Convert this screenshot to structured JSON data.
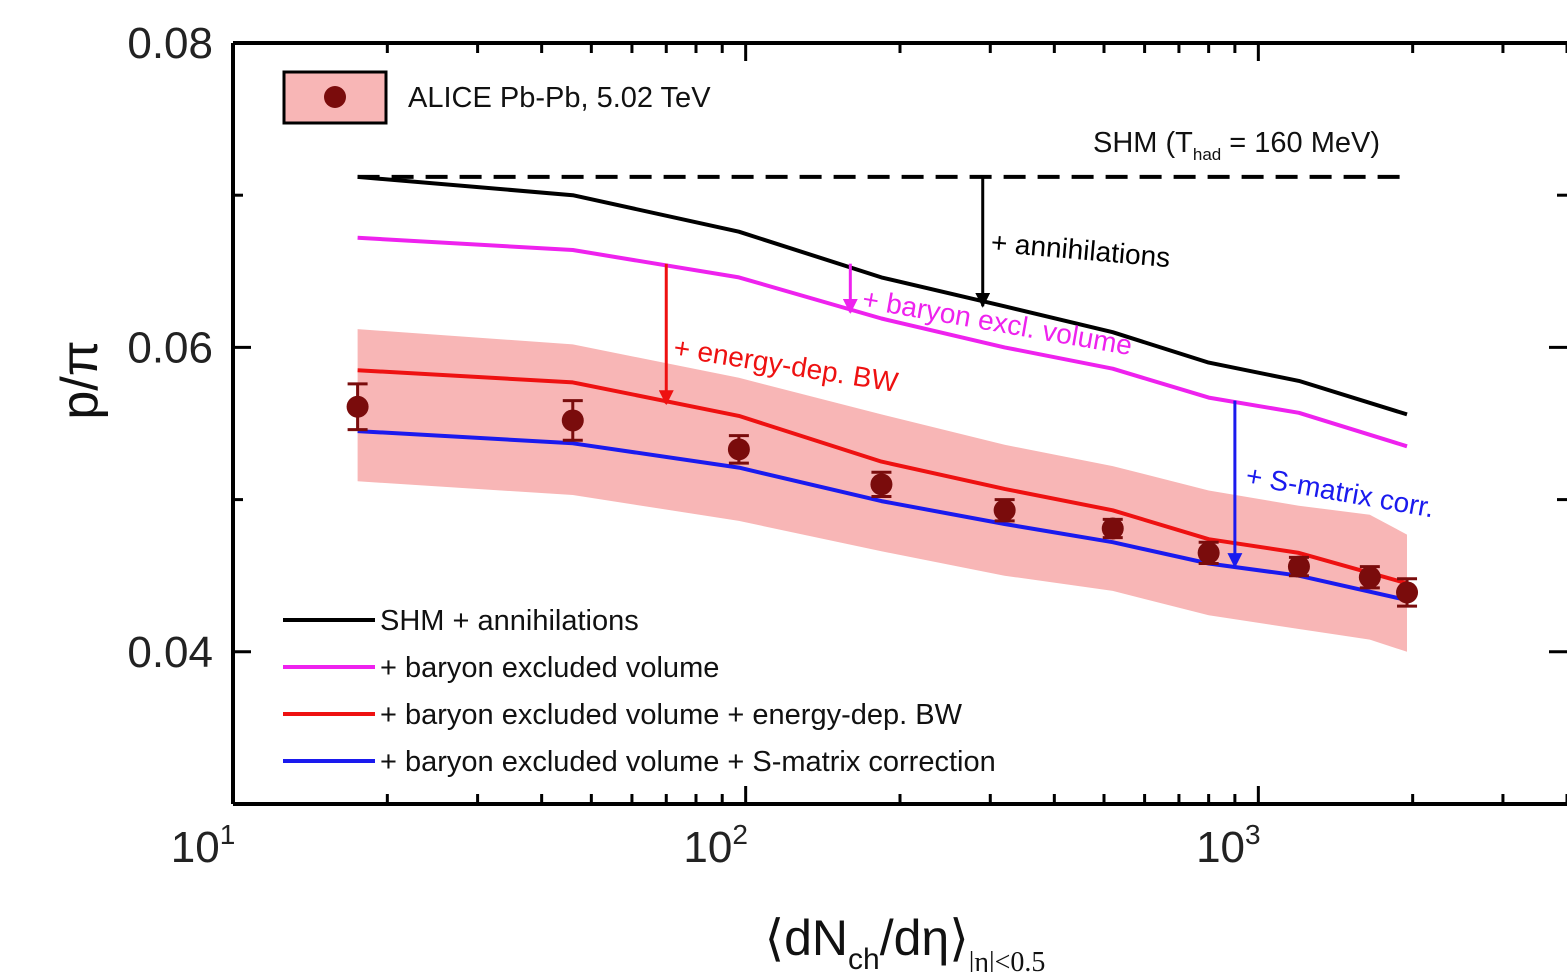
{
  "chart_data": {
    "type": "line",
    "xlabel": {
      "main": "⟨dN",
      "sub1": "ch",
      "mid": "/dη⟩",
      "sub2": "|η|<0.5"
    },
    "ylabel": "p/π",
    "x_scale": "log",
    "xlim": [
      10,
      4000
    ],
    "ylim": [
      0.03,
      0.08
    ],
    "x_tick_labels": [
      {
        "value": 10,
        "base": "10",
        "exp": "1"
      },
      {
        "value": 100,
        "base": "10",
        "exp": "2"
      },
      {
        "value": 1000,
        "base": "10",
        "exp": "3"
      }
    ],
    "y_ticks": [
      {
        "value": 0.04,
        "label": "0.04"
      },
      {
        "value": 0.06,
        "label": "0.06"
      },
      {
        "value": 0.08,
        "label": "0.08"
      }
    ],
    "data_legend": "ALICE Pb-Pb, 5.02 TeV",
    "shm_reference": {
      "label_main": "SHM (T",
      "label_sub": "had",
      "label_rest": " = 160 MeV)",
      "y": 0.0712,
      "x_range": [
        17.5,
        1950
      ],
      "color": "#000000"
    },
    "measurements": {
      "x": [
        17.5,
        46,
        97,
        184,
        320,
        520,
        800,
        1200,
        1650,
        1950
      ],
      "y": [
        0.0561,
        0.0552,
        0.0533,
        0.051,
        0.0493,
        0.0481,
        0.0465,
        0.0456,
        0.0449,
        0.0439
      ],
      "stat_err": [
        0.0015,
        0.0013,
        0.0009,
        0.0008,
        0.0007,
        0.0006,
        0.0007,
        0.0006,
        0.0007,
        0.0009
      ],
      "syst_band": {
        "x": [
          17.5,
          46,
          97,
          184,
          320,
          520,
          800,
          1200,
          1650,
          1950
        ],
        "low": [
          0.0512,
          0.0503,
          0.0486,
          0.0466,
          0.045,
          0.044,
          0.0424,
          0.0415,
          0.0408,
          0.04
        ],
        "high": [
          0.0612,
          0.0602,
          0.058,
          0.0556,
          0.0536,
          0.0522,
          0.0506,
          0.0496,
          0.049,
          0.0477
        ]
      },
      "marker_color": "#7a0c0c",
      "band_color": "#f8b6b6"
    },
    "series": [
      {
        "name": "SHM + annihilations",
        "color": "#000000",
        "x": [
          17.5,
          46,
          97,
          184,
          320,
          520,
          800,
          1200,
          1950
        ],
        "y": [
          0.0712,
          0.07,
          0.0676,
          0.0646,
          0.0627,
          0.061,
          0.059,
          0.0578,
          0.0556
        ]
      },
      {
        "name": "+ baryon excluded volume",
        "color": "#ee22ee",
        "x": [
          17.5,
          46,
          97,
          184,
          320,
          520,
          800,
          1200,
          1950
        ],
        "y": [
          0.0672,
          0.0664,
          0.0646,
          0.0619,
          0.06,
          0.0586,
          0.0567,
          0.0557,
          0.0535
        ]
      },
      {
        "name": "+ baryon excluded volume + energy-dep. BW",
        "color": "#ee1111",
        "x": [
          17.5,
          46,
          97,
          184,
          320,
          520,
          800,
          1200,
          1950
        ],
        "y": [
          0.0585,
          0.0577,
          0.0555,
          0.0525,
          0.0507,
          0.0493,
          0.0474,
          0.0465,
          0.0445
        ]
      },
      {
        "name": "+ baryon excluded volume + S-matrix correction",
        "color": "#1a1aee",
        "x": [
          17.5,
          46,
          97,
          184,
          320,
          520,
          800,
          1200,
          1950
        ],
        "y": [
          0.0545,
          0.0537,
          0.0521,
          0.0499,
          0.0484,
          0.0472,
          0.0458,
          0.045,
          0.0434
        ]
      }
    ],
    "annotations": [
      {
        "text": "+ annihilations",
        "color": "#000000",
        "arrow_x": 290,
        "arrow_from": 0.0712,
        "arrow_to": 0.0627,
        "text_x": 300,
        "text_y": 0.0663,
        "angle": 5
      },
      {
        "text": "+ baryon excl. volume",
        "color": "#ee22ee",
        "arrow_x": 160,
        "arrow_from": 0.0655,
        "arrow_to": 0.0623,
        "text_x": 168,
        "text_y": 0.0626,
        "angle": 10
      },
      {
        "text": "+ energy-dep. BW",
        "color": "#ee1111",
        "arrow_x": 70,
        "arrow_from": 0.0655,
        "arrow_to": 0.0563,
        "text_x": 72,
        "text_y": 0.0594,
        "angle": 9
      },
      {
        "text": "+ S-matrix corr.",
        "color": "#1a1aee",
        "arrow_x": 900,
        "arrow_from": 0.0565,
        "arrow_to": 0.0456,
        "text_x": 940,
        "text_y": 0.051,
        "angle": 10
      }
    ],
    "grid": false,
    "legend_position": "bottom-left"
  }
}
